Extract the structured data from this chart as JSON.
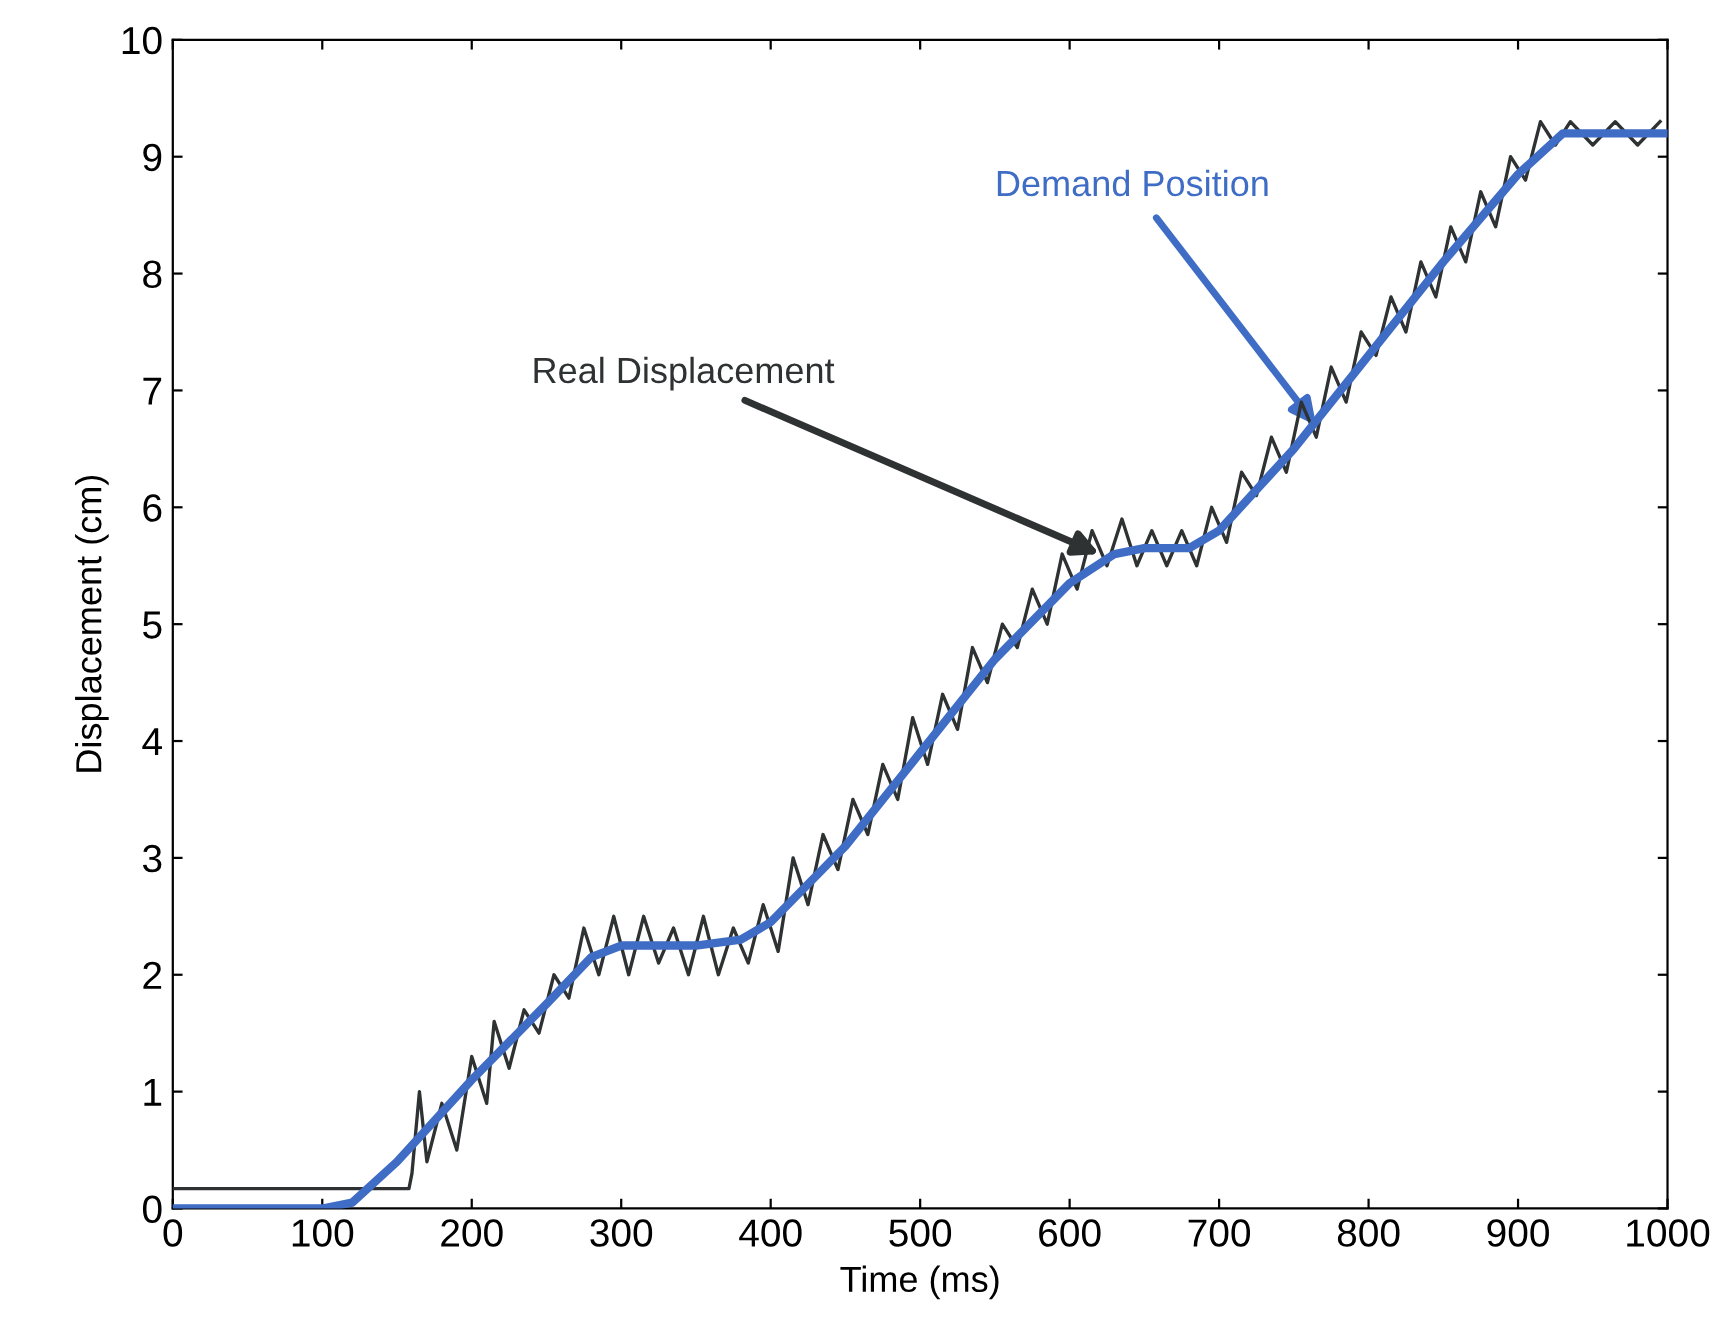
{
  "chart_data": {
    "type": "line",
    "xlabel": "Time (ms)",
    "ylabel": "Displacement (cm)",
    "xlim": [
      0,
      1000
    ],
    "ylim": [
      0,
      10
    ],
    "xticks": [
      0,
      100,
      200,
      300,
      400,
      500,
      600,
      700,
      800,
      900,
      1000
    ],
    "yticks": [
      0,
      1,
      2,
      3,
      4,
      5,
      6,
      7,
      8,
      9,
      10
    ],
    "grid": false,
    "legend": false,
    "line_style": "solid",
    "marker": "none",
    "series": [
      {
        "color": "#2e3232",
        "x": [
          0,
          158,
          160,
          165,
          170,
          180,
          190,
          200,
          210,
          215,
          225,
          235,
          245,
          255,
          265,
          275,
          285,
          295,
          305,
          315,
          325,
          335,
          345,
          355,
          365,
          375,
          385,
          395,
          405,
          415,
          425,
          435,
          445,
          455,
          465,
          475,
          485,
          495,
          505,
          515,
          525,
          535,
          545,
          555,
          565,
          575,
          585,
          595,
          605,
          615,
          625,
          635,
          645,
          655,
          665,
          675,
          685,
          695,
          705,
          715,
          725,
          735,
          745,
          755,
          765,
          775,
          785,
          795,
          805,
          815,
          825,
          835,
          845,
          855,
          865,
          875,
          885,
          895,
          905,
          915,
          925,
          935,
          950,
          965,
          980,
          995
        ],
        "values": [
          0.17,
          0.17,
          0.3,
          1.0,
          0.4,
          0.9,
          0.5,
          1.3,
          0.9,
          1.6,
          1.2,
          1.7,
          1.5,
          2.0,
          1.8,
          2.4,
          2.0,
          2.5,
          2.0,
          2.5,
          2.1,
          2.4,
          2.0,
          2.5,
          2.0,
          2.4,
          2.1,
          2.6,
          2.2,
          3.0,
          2.6,
          3.2,
          2.9,
          3.5,
          3.2,
          3.8,
          3.5,
          4.2,
          3.8,
          4.4,
          4.1,
          4.8,
          4.5,
          5.0,
          4.8,
          5.3,
          5.0,
          5.6,
          5.3,
          5.8,
          5.5,
          5.9,
          5.5,
          5.8,
          5.5,
          5.8,
          5.5,
          6.0,
          5.7,
          6.3,
          6.1,
          6.6,
          6.3,
          6.9,
          6.6,
          7.2,
          6.9,
          7.5,
          7.3,
          7.8,
          7.5,
          8.1,
          7.8,
          8.4,
          8.1,
          8.7,
          8.4,
          9.0,
          8.8,
          9.3,
          9.1,
          9.3,
          9.1,
          9.3,
          9.1,
          9.3
        ]
      },
      {
        "color": "#3f6cc4",
        "x": [
          0,
          100,
          120,
          150,
          200,
          250,
          280,
          300,
          350,
          380,
          400,
          450,
          500,
          550,
          600,
          630,
          650,
          680,
          700,
          750,
          800,
          850,
          900,
          930,
          1000
        ],
        "values": [
          0,
          0,
          0.05,
          0.4,
          1.1,
          1.75,
          2.15,
          2.25,
          2.25,
          2.3,
          2.45,
          3.1,
          3.9,
          4.7,
          5.35,
          5.6,
          5.65,
          5.65,
          5.8,
          6.5,
          7.3,
          8.1,
          8.85,
          9.2,
          9.2
        ]
      }
    ],
    "annotations": [
      {
        "text": "Real Displacement",
        "x": 620,
        "y": 5.6
      },
      {
        "text": "Demand Position",
        "x": 765,
        "y": 6.7
      }
    ]
  }
}
